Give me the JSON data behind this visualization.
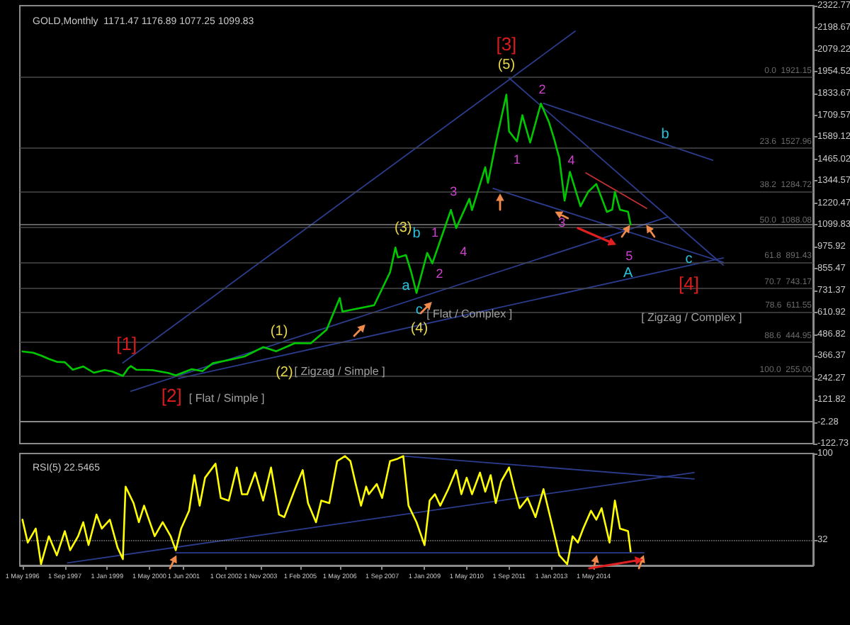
{
  "chart_data": [
    {
      "type": "line",
      "title": "GOLD,Monthly  1171.47 1176.89 1077.25 1099.83",
      "tick_labels": "y",
      "grid": false,
      "marker": "none",
      "line_style": "solid",
      "xlim": [
        "1996-04",
        "2021-04"
      ],
      "ylim": [
        -122.73,
        2322.77
      ],
      "yticks": [
        -122.73,
        -2.28,
        121.82,
        242.27,
        366.37,
        486.82,
        610.92,
        731.37,
        855.47,
        975.92,
        1099.83,
        1220.47,
        1344.57,
        1465.02,
        1589.12,
        1709.57,
        1833.67,
        1954.52,
        2079.22,
        2198.67,
        2322.77
      ],
      "series": [
        {
          "color": "#00c800",
          "x": [
            "1996-05",
            "1996-09",
            "1996-12",
            "1997-03",
            "1997-06",
            "1997-09",
            "1997-12",
            "1998-04",
            "1998-08",
            "1998-12",
            "1999-03",
            "1999-07",
            "1999-09",
            "1999-10",
            "1999-12",
            "2000-06",
            "2000-12",
            "2001-03",
            "2001-09",
            "2002-01",
            "2002-05",
            "2002-12",
            "2003-05",
            "2003-12",
            "2004-05",
            "2004-12",
            "2005-06",
            "2005-12",
            "2006-05",
            "2006-06",
            "2006-12",
            "2007-06",
            "2007-12",
            "2008-02",
            "2008-03",
            "2008-06",
            "2008-08",
            "2008-10",
            "2009-02",
            "2009-04",
            "2009-11",
            "2010-01",
            "2010-06",
            "2010-07",
            "2010-12",
            "2011-01",
            "2011-04",
            "2011-08",
            "2011-09",
            "2011-12",
            "2012-02",
            "2012-05",
            "2012-09",
            "2012-12",
            "2013-02",
            "2013-04",
            "2013-06",
            "2013-08",
            "2013-12",
            "2014-03",
            "2014-06",
            "2014-10",
            "2014-12",
            "2015-01",
            "2015-03",
            "2015-06",
            "2015-07"
          ],
          "values": [
            392,
            385,
            369,
            350,
            334,
            332,
            290,
            308,
            273,
            288,
            280,
            255,
            299,
            310,
            290,
            288,
            272,
            258,
            293,
            282,
            326,
            347,
            364,
            416,
            393,
            438,
            437,
            513,
            690,
            614,
            632,
            650,
            834,
            972,
            917,
            930,
            834,
            718,
            942,
            884,
            1182,
            1081,
            1244,
            1181,
            1421,
            1333,
            1556,
            1826,
            1621,
            1565,
            1711,
            1558,
            1776,
            1675,
            1578,
            1472,
            1234,
            1395,
            1202,
            1284,
            1327,
            1171,
            1184,
            1283,
            1183,
            1172,
            1099.83
          ]
        },
        {
          "color": "#2b3c8c",
          "x": [
            "1999-07",
            "2013-10"
          ],
          "values": [
            328,
            2180
          ]
        },
        {
          "color": "#2b3c8c",
          "x": [
            "1999-10",
            "2016-09"
          ],
          "values": [
            170,
            1143
          ]
        },
        {
          "color": "#2b3c8c",
          "x": [
            "2001-04",
            "2018-06"
          ],
          "values": [
            241,
            914
          ]
        },
        {
          "color": "#2b3c8c",
          "x": [
            "2011-09",
            "2018-06"
          ],
          "values": [
            1919,
            874
          ]
        },
        {
          "color": "#2b3c8c",
          "x": [
            "2012-10",
            "2018-02"
          ],
          "values": [
            1777,
            1460
          ]
        },
        {
          "color": "#2b3c8c",
          "x": [
            "2011-03",
            "2018-06"
          ],
          "values": [
            1302,
            890
          ]
        },
        {
          "color": "#c03030",
          "x": [
            "2014-02",
            "2016-01"
          ],
          "values": [
            1389,
            1191
          ]
        }
      ],
      "ref_lines": [
        {
          "axis": "y",
          "value": 1099.83,
          "color": "#808080"
        },
        {
          "axis": "y",
          "value": 1921.15,
          "label": "0.0  1921.15",
          "color": "#4a4a4a"
        },
        {
          "axis": "y",
          "value": 1527.96,
          "label": "23.6  1527.96",
          "color": "#4a4a4a"
        },
        {
          "axis": "y",
          "value": 1284.72,
          "label": "38.2  1284.72",
          "color": "#4a4a4a"
        },
        {
          "axis": "y",
          "value": 1088.08,
          "label": "50.0  1088.08",
          "color": "#4a4a4a"
        },
        {
          "axis": "y",
          "value": 891.43,
          "label": "61.8  891.43",
          "color": "#4a4a4a"
        },
        {
          "axis": "y",
          "value": 743.17,
          "label": "70.7  743.17",
          "color": "#4a4a4a"
        },
        {
          "axis": "y",
          "value": 611.55,
          "label": "78.6  611.55",
          "color": "#4a4a4a"
        },
        {
          "axis": "y",
          "value": 444.95,
          "label": "88.6  444.95",
          "color": "#4a4a4a"
        },
        {
          "axis": "y",
          "value": 255.0,
          "label": "100.0  255.00",
          "color": "#4a4a4a"
        }
      ],
      "annotations": [
        {
          "text": "[1]",
          "x": "1999-10",
          "y": 310
        },
        {
          "text": "[2]",
          "x": "2001-03",
          "y": 258
        },
        {
          "text": "[3]",
          "x": "2011-08",
          "y": 1826
        },
        {
          "text": "[4]",
          "x": "2017-05",
          "y": 772
        },
        {
          "text": "(1)",
          "x": "2004-05",
          "y": 393
        },
        {
          "text": "(2)",
          "x": "2004-08",
          "y": 273
        },
        {
          "text": "(3)",
          "x": "2008-05",
          "y": 1080
        },
        {
          "text": "(4)",
          "x": "2008-11",
          "y": 518
        },
        {
          "text": "(5)",
          "x": "2011-08",
          "y": 1826
        },
        {
          "text": "a",
          "x": "2008-06",
          "y": 756
        },
        {
          "text": "b",
          "x": "2008-10",
          "y": 1049
        },
        {
          "text": "c",
          "x": "2008-11",
          "y": 621
        },
        {
          "text": "A",
          "x": "2015-06",
          "y": 827
        },
        {
          "text": "b",
          "x": "2016-08",
          "y": 1549
        },
        {
          "text": "c",
          "x": "2017-05",
          "y": 906
        },
        {
          "text": "1",
          "x": "2009-05",
          "y": 1057
        },
        {
          "text": "2",
          "x": "2009-04",
          "y": 884
        },
        {
          "text": "3",
          "x": "2009-12",
          "y": 1286
        },
        {
          "text": "4",
          "x": "2010-07",
          "y": 1181
        },
        {
          "text": "1",
          "x": "2011-12",
          "y": 1565
        },
        {
          "text": "2",
          "x": "2012-09",
          "y": 1776
        },
        {
          "text": "3",
          "x": "2013-05",
          "y": 1112
        },
        {
          "text": "4",
          "x": "2013-08",
          "y": 1395
        },
        {
          "text": "5",
          "x": "2015-07",
          "y": 1099.83
        },
        {
          "text": "[ Flat / Simple ]",
          "x": "2001-03",
          "y": 258
        },
        {
          "text": "[ Zigzag / Simple ]",
          "x": "2006-05",
          "y": 281
        },
        {
          "text": "[ Flat / Complex ]",
          "x": "2010-06",
          "y": 600
        },
        {
          "text": "[ Zigzag / Complex ]",
          "x": "2017-06",
          "y": 582
        }
      ]
    },
    {
      "type": "line",
      "title": "RSI(5) 22.5465",
      "grid": false,
      "marker": "none",
      "line_style": "solid",
      "xlim": [
        "1996-04",
        "2021-04"
      ],
      "ylim": [
        12,
        100
      ],
      "yticks": [
        32,
        100
      ],
      "xticks": [
        {
          "value": "1996-05-01",
          "label": "1 May 1996"
        },
        {
          "value": "1997-09-01",
          "label": "1 Sep 1997"
        },
        {
          "value": "1999-01-01",
          "label": "1 Jan 1999"
        },
        {
          "value": "2000-05-01",
          "label": "1 May 2000"
        },
        {
          "value": "2001-06-01",
          "label": "1 Jun 2001"
        },
        {
          "value": "2002-10-01",
          "label": "1 Oct 2002"
        },
        {
          "value": "2003-11-01",
          "label": "1 Nov 2003"
        },
        {
          "value": "2005-02-01",
          "label": "1 Feb 2005"
        },
        {
          "value": "2006-05-01",
          "label": "1 May 2006"
        },
        {
          "value": "2007-09-01",
          "label": "1 Sep 2007"
        },
        {
          "value": "2009-01-01",
          "label": "1 Jan 2009"
        },
        {
          "value": "2010-05-01",
          "label": "1 May 2010"
        },
        {
          "value": "2011-09-01",
          "label": "1 Sep 2011"
        },
        {
          "value": "2013-01-01",
          "label": "1 Jan 2013"
        },
        {
          "value": "2014-05-01",
          "label": "1 May 2014"
        }
      ],
      "series": [
        {
          "color": "#ffff00",
          "x": [
            "1996-05",
            "1996-07",
            "1996-10",
            "1996-12",
            "1997-03",
            "1997-06",
            "1997-09",
            "1997-11",
            "1998-02",
            "1998-04",
            "1998-06",
            "1998-09",
            "1998-11",
            "1999-02",
            "1999-05",
            "1999-07",
            "1999-08",
            "1999-11",
            "2000-01",
            "2000-03",
            "2000-06",
            "2000-07",
            "2000-10",
            "2001-01",
            "2001-03",
            "2001-05",
            "2001-08",
            "2001-10",
            "2001-12",
            "2002-02",
            "2002-06",
            "2002-08",
            "2002-11",
            "2003-02",
            "2003-04",
            "2003-06",
            "2003-09",
            "2003-12",
            "2004-03",
            "2004-06",
            "2004-08",
            "2004-10",
            "2004-12",
            "2005-03",
            "2005-05",
            "2005-08",
            "2005-10",
            "2006-01",
            "2006-04",
            "2006-07",
            "2006-09",
            "2006-11",
            "2007-01",
            "2007-03",
            "2007-04",
            "2007-07",
            "2007-09",
            "2007-12",
            "2008-03",
            "2008-05",
            "2008-07",
            "2008-10",
            "2009-01",
            "2009-03",
            "2009-05",
            "2009-07",
            "2009-10",
            "2010-01",
            "2010-03",
            "2010-05",
            "2010-07",
            "2010-10",
            "2010-12",
            "2011-02",
            "2011-04",
            "2011-06",
            "2011-09",
            "2011-11",
            "2012-01",
            "2012-04",
            "2012-07",
            "2012-10",
            "2013-01",
            "2013-04",
            "2013-07",
            "2013-09",
            "2013-11",
            "2014-01",
            "2014-04",
            "2014-06",
            "2014-08",
            "2014-11",
            "2015-01",
            "2015-03",
            "2015-06",
            "2015-07"
          ],
          "values": [
            48,
            30,
            41,
            13,
            35,
            20,
            39,
            24,
            35,
            46,
            28,
            52,
            41,
            48,
            26,
            17,
            74,
            61,
            46,
            59,
            41,
            35,
            46,
            35,
            24,
            41,
            55,
            83,
            59,
            81,
            92,
            65,
            63,
            89,
            68,
            68,
            85,
            63,
            89,
            52,
            50,
            61,
            72,
            87,
            61,
            46,
            63,
            61,
            94,
            98,
            94,
            76,
            59,
            74,
            68,
            76,
            65,
            94,
            96,
            98,
            59,
            46,
            28,
            63,
            68,
            59,
            72,
            87,
            68,
            81,
            68,
            85,
            70,
            83,
            61,
            78,
            89,
            72,
            57,
            65,
            50,
            72,
            46,
            20,
            13,
            35,
            30,
            41,
            55,
            48,
            57,
            30,
            63,
            41,
            39,
            23
          ]
        },
        {
          "color": "#2b3c8c",
          "x": [
            "1997-10",
            "2017-07"
          ],
          "values": [
            14,
            85
          ]
        },
        {
          "color": "#2b3c8c",
          "x": [
            "2008-05",
            "2017-07"
          ],
          "values": [
            98,
            80
          ]
        },
        {
          "color": "#2b3c8c",
          "x": [
            "2001-03",
            "2015-12"
          ],
          "values": [
            22,
            22
          ]
        }
      ],
      "ref_lines": [
        {
          "axis": "y",
          "value": 32,
          "color": "#808080",
          "line_style": "dotted"
        }
      ]
    }
  ]
}
